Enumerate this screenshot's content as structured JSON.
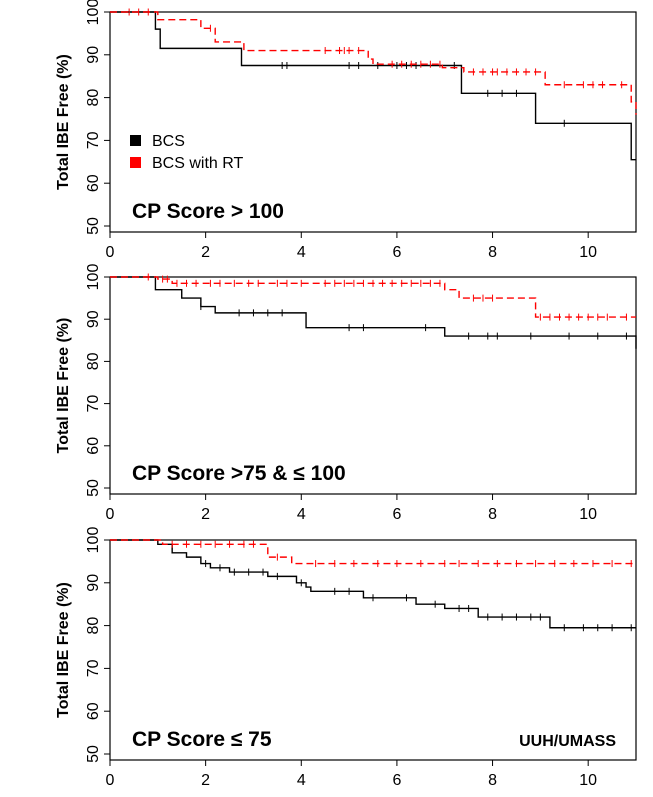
{
  "chart_data": [
    {
      "type": "line",
      "title": "CP Score > 100",
      "ylabel": "Total IBE Free (%)",
      "xlabel": "",
      "xlim": [
        0,
        11
      ],
      "ylim": [
        50,
        100
      ],
      "xticks": [
        0,
        2,
        4,
        6,
        8,
        10
      ],
      "yticks": [
        50,
        60,
        70,
        80,
        90,
        100
      ],
      "legend": {
        "placement": "left-middle",
        "entries": [
          {
            "label": "BCS",
            "color": "#000000"
          },
          {
            "label": "BCS with RT",
            "color": "#ff0000"
          }
        ]
      },
      "series": [
        {
          "name": "BCS",
          "color": "#000000",
          "dash": false,
          "x": [
            0,
            0.95,
            1.05,
            2.75,
            7.35,
            8.9,
            10.9,
            11
          ],
          "y": [
            100,
            96,
            91.5,
            87.5,
            81,
            74,
            65.5,
            65.5
          ],
          "censor": [
            3.6,
            3.7,
            5.0,
            5.2,
            5.6,
            6.0,
            6.2,
            6.4,
            7.2,
            7.9,
            8.2,
            8.5,
            9.5
          ]
        },
        {
          "name": "BCS with RT",
          "color": "#ff0000",
          "dash": true,
          "x": [
            0,
            1.0,
            1.9,
            2.2,
            2.8,
            5.4,
            5.5,
            6.95,
            7.4,
            9.1,
            10.9,
            11
          ],
          "y": [
            100,
            98.2,
            96.2,
            93,
            91,
            89,
            87.8,
            87,
            86,
            83,
            79,
            76
          ],
          "censor": [
            0.4,
            0.6,
            0.8,
            2.1,
            4.5,
            4.8,
            4.9,
            5.0,
            5.2,
            5.9,
            6.1,
            6.3,
            6.5,
            6.7,
            6.9,
            7.6,
            7.8,
            8.0,
            8.1,
            8.3,
            8.5,
            8.7,
            8.9,
            9.5,
            9.9,
            10.1,
            10.3,
            10.7
          ]
        }
      ]
    },
    {
      "type": "line",
      "title": "CP Score >75 & ≤ 100",
      "ylabel": "Total IBE Free (%)",
      "xlabel": "",
      "xlim": [
        0,
        11
      ],
      "ylim": [
        50,
        100
      ],
      "xticks": [
        0,
        2,
        4,
        6,
        8,
        10
      ],
      "yticks": [
        50,
        60,
        70,
        80,
        90,
        100
      ],
      "series": [
        {
          "name": "BCS",
          "color": "#000000",
          "dash": false,
          "x": [
            0,
            0.95,
            1.5,
            1.9,
            2.2,
            4.1,
            7.0,
            11
          ],
          "y": [
            100,
            97,
            95,
            93,
            91.5,
            88,
            86,
            83
          ],
          "censor": [
            1.9,
            2.7,
            3.0,
            3.3,
            3.6,
            5.0,
            5.3,
            6.6,
            7.5,
            7.9,
            8.1,
            8.8,
            9.6,
            10.2,
            10.8
          ]
        },
        {
          "name": "BCS with RT",
          "color": "#ff0000",
          "dash": true,
          "x": [
            0,
            1.0,
            1.3,
            7.0,
            7.3,
            8.9,
            11
          ],
          "y": [
            100,
            99.5,
            98.5,
            97,
            95,
            90.5,
            90.5
          ],
          "censor": [
            0.8,
            1.1,
            1.2,
            1.4,
            1.6,
            1.8,
            2.1,
            2.3,
            2.6,
            2.9,
            3.1,
            3.5,
            3.7,
            4.0,
            4.5,
            4.7,
            4.9,
            5.1,
            5.3,
            5.5,
            5.7,
            5.9,
            6.1,
            6.3,
            6.5,
            6.7,
            6.9,
            7.6,
            7.8,
            8.0,
            9.0,
            9.2,
            9.4,
            9.6,
            9.8,
            10.0,
            10.2,
            10.4,
            10.8
          ]
        }
      ]
    },
    {
      "type": "line",
      "title": "CP Score ≤ 75",
      "ylabel": "Total IBE Free (%)",
      "xlabel": "",
      "xlim": [
        0,
        11
      ],
      "ylim": [
        50,
        100
      ],
      "xticks": [
        0,
        2,
        4,
        6,
        8,
        10
      ],
      "yticks": [
        50,
        60,
        70,
        80,
        90,
        100
      ],
      "source": "UUH/UMASS",
      "series": [
        {
          "name": "BCS",
          "color": "#000000",
          "dash": false,
          "x": [
            0,
            1.0,
            1.3,
            1.6,
            1.9,
            2.1,
            2.5,
            3.3,
            3.9,
            4.1,
            4.2,
            5.3,
            6.4,
            7.0,
            7.7,
            9.2,
            11
          ],
          "y": [
            100,
            99,
            97,
            96,
            94.5,
            93.5,
            92.5,
            91.5,
            90,
            89,
            88,
            86.5,
            85,
            84,
            82,
            79.5,
            79.5
          ],
          "censor": [
            2.0,
            2.3,
            2.6,
            2.9,
            3.2,
            3.5,
            4.0,
            4.7,
            5.0,
            5.5,
            6.2,
            6.8,
            7.3,
            7.5,
            7.9,
            8.2,
            8.5,
            8.8,
            9.0,
            9.5,
            9.9,
            10.2,
            10.5,
            10.9
          ]
        },
        {
          "name": "BCS with RT",
          "color": "#ff0000",
          "dash": true,
          "x": [
            0,
            1.1,
            3.3,
            3.8,
            11
          ],
          "y": [
            100,
            99,
            96,
            94.5,
            94.5
          ],
          "censor": [
            1.3,
            1.6,
            1.9,
            2.2,
            2.5,
            2.8,
            3.0,
            3.5,
            4.3,
            4.7,
            5.1,
            5.6,
            6.0,
            6.5,
            7.0,
            7.3,
            7.7,
            8.1,
            8.5,
            8.9,
            9.3,
            9.7,
            10.1,
            10.5,
            10.9
          ]
        }
      ]
    }
  ]
}
